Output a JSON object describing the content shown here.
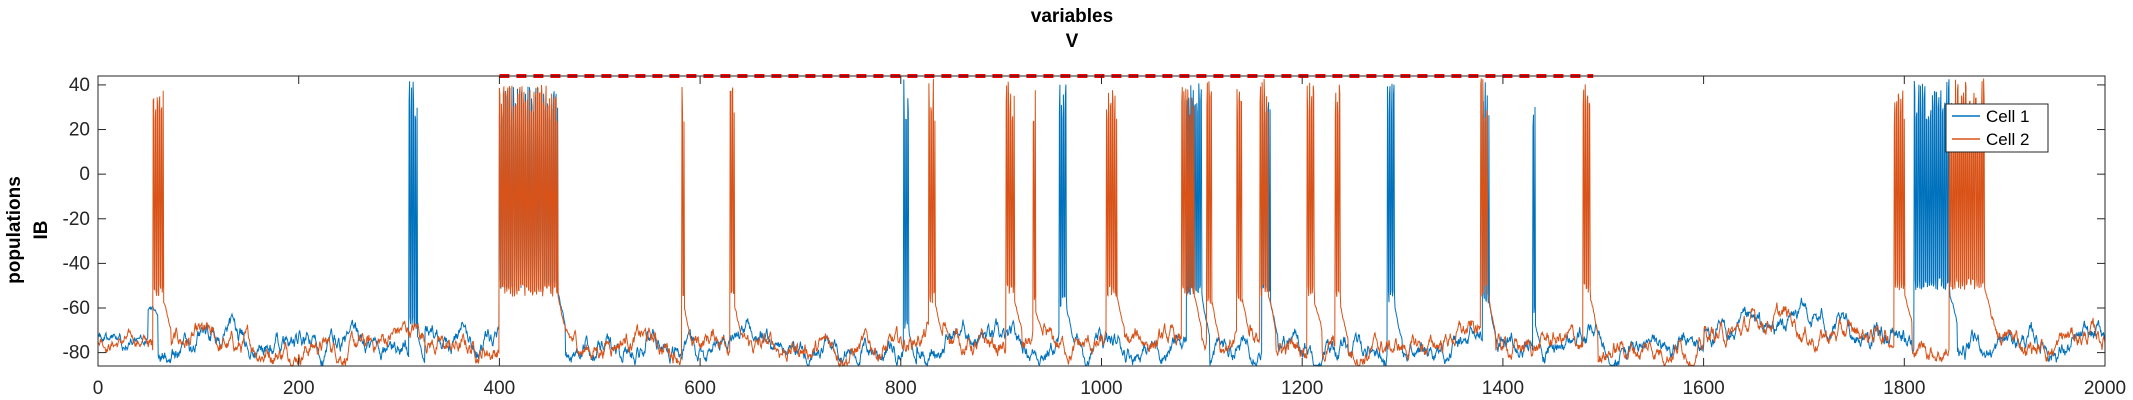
{
  "chart_data": {
    "type": "line",
    "title": [
      "variables",
      "V"
    ],
    "ylabel": [
      "populations",
      "IB"
    ],
    "xlabel": "",
    "xlim": [
      0,
      2000
    ],
    "ylim": [
      -86,
      44
    ],
    "xticks": [
      0,
      200,
      400,
      600,
      800,
      1000,
      1200,
      1400,
      1600,
      1800,
      2000
    ],
    "yticks": [
      -80,
      -60,
      -40,
      -20,
      0,
      20,
      40
    ],
    "grid": false,
    "legend_position": "top-right",
    "series": [
      {
        "name": "Cell 1",
        "color": "#0072BD",
        "baseline": -78,
        "bursts": [
          {
            "start": 310,
            "end": 318,
            "peak": 44,
            "trough": -70
          },
          {
            "start": 400,
            "end": 458,
            "peak": 40,
            "trough": -52
          },
          {
            "start": 803,
            "end": 808,
            "peak": 43,
            "trough": -70
          },
          {
            "start": 958,
            "end": 965,
            "peak": 42,
            "trough": -60
          },
          {
            "start": 1085,
            "end": 1100,
            "peak": 42,
            "trough": -55
          },
          {
            "start": 1160,
            "end": 1168,
            "peak": 42,
            "trough": -55
          },
          {
            "start": 1285,
            "end": 1292,
            "peak": 42,
            "trough": -58
          },
          {
            "start": 1380,
            "end": 1386,
            "peak": 42,
            "trough": -58
          },
          {
            "start": 1430,
            "end": 1432,
            "peak": 37,
            "trough": -65
          },
          {
            "start": 1810,
            "end": 1845,
            "peak": 43,
            "trough": -52
          }
        ]
      },
      {
        "name": "Cell 2",
        "color": "#D95319",
        "baseline": -78,
        "bursts": [
          {
            "start": 55,
            "end": 65,
            "peak": 41,
            "trough": -55
          },
          {
            "start": 400,
            "end": 458,
            "peak": 40,
            "trough": -55
          },
          {
            "start": 582,
            "end": 584,
            "peak": 43,
            "trough": -60
          },
          {
            "start": 630,
            "end": 634,
            "peak": 43,
            "trough": -58
          },
          {
            "start": 828,
            "end": 834,
            "peak": 43,
            "trough": -58
          },
          {
            "start": 905,
            "end": 913,
            "peak": 43,
            "trough": -55
          },
          {
            "start": 932,
            "end": 934,
            "peak": 43,
            "trough": -60
          },
          {
            "start": 1005,
            "end": 1015,
            "peak": 43,
            "trough": -55
          },
          {
            "start": 1080,
            "end": 1092,
            "peak": 43,
            "trough": -55
          },
          {
            "start": 1105,
            "end": 1110,
            "peak": 43,
            "trough": -58
          },
          {
            "start": 1135,
            "end": 1140,
            "peak": 43,
            "trough": -58
          },
          {
            "start": 1158,
            "end": 1166,
            "peak": 43,
            "trough": -55
          },
          {
            "start": 1205,
            "end": 1212,
            "peak": 43,
            "trough": -55
          },
          {
            "start": 1233,
            "end": 1238,
            "peak": 43,
            "trough": -58
          },
          {
            "start": 1378,
            "end": 1385,
            "peak": 43,
            "trough": -55
          },
          {
            "start": 1480,
            "end": 1487,
            "peak": 43,
            "trough": -55
          },
          {
            "start": 1790,
            "end": 1800,
            "peak": 40,
            "trough": -52
          },
          {
            "start": 1845,
            "end": 1880,
            "peak": 43,
            "trough": -52
          }
        ]
      }
    ],
    "annotations": [
      {
        "type": "dashed-line",
        "color": "#FF0000",
        "x_start": 400,
        "x_end": 1490,
        "y": 44
      }
    ]
  }
}
